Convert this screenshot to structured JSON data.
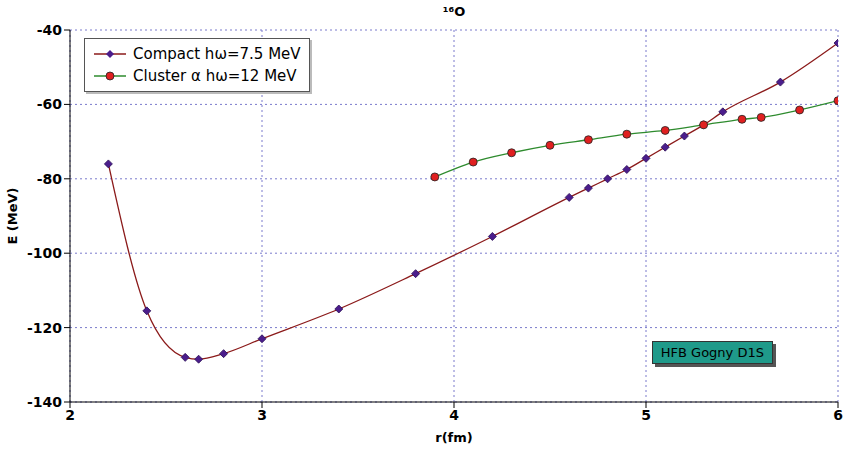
{
  "chart_data": {
    "type": "line",
    "title": "¹⁶O",
    "x_label": "r(fm)",
    "y_label": "E (MeV)",
    "annotation": "HFB Gogny D1S",
    "xlim": [
      2,
      6
    ],
    "xticks": [
      2,
      3,
      4,
      5,
      6
    ],
    "ylim": [
      -140,
      -40
    ],
    "yticks": [
      -140,
      -120,
      -100,
      -80,
      -60,
      -40
    ],
    "grid": true,
    "legend": "upper left",
    "series": [
      {
        "name": "Compact hω=7.5 MeV",
        "color": "#8b1a1a",
        "marker": "diamond",
        "x": [
          2.2,
          2.4,
          2.6,
          2.67,
          2.8,
          3.0,
          3.4,
          3.8,
          4.2,
          4.6,
          4.7,
          4.8,
          4.9,
          5.0,
          5.1,
          5.2,
          5.3,
          5.4,
          5.7,
          6.0
        ],
        "values": [
          -76,
          -115.5,
          -128,
          -128.5,
          -127,
          -123,
          -115,
          -105.5,
          -95.5,
          -85,
          -82.5,
          -80,
          -77.5,
          -74.5,
          -71.5,
          -68.5,
          -65.5,
          -62,
          -54,
          -43.5
        ]
      },
      {
        "name": "Cluster α hω=12 MeV",
        "color": "#2e8b2e",
        "marker": "circle",
        "x": [
          3.9,
          4.1,
          4.3,
          4.5,
          4.7,
          4.9,
          5.1,
          5.3,
          5.5,
          5.6,
          5.8,
          6.0
        ],
        "values": [
          -79.5,
          -75.5,
          -73,
          -71,
          -69.5,
          -68,
          -67,
          -65.5,
          -64,
          -63.5,
          -61.5,
          -59
        ]
      }
    ]
  }
}
